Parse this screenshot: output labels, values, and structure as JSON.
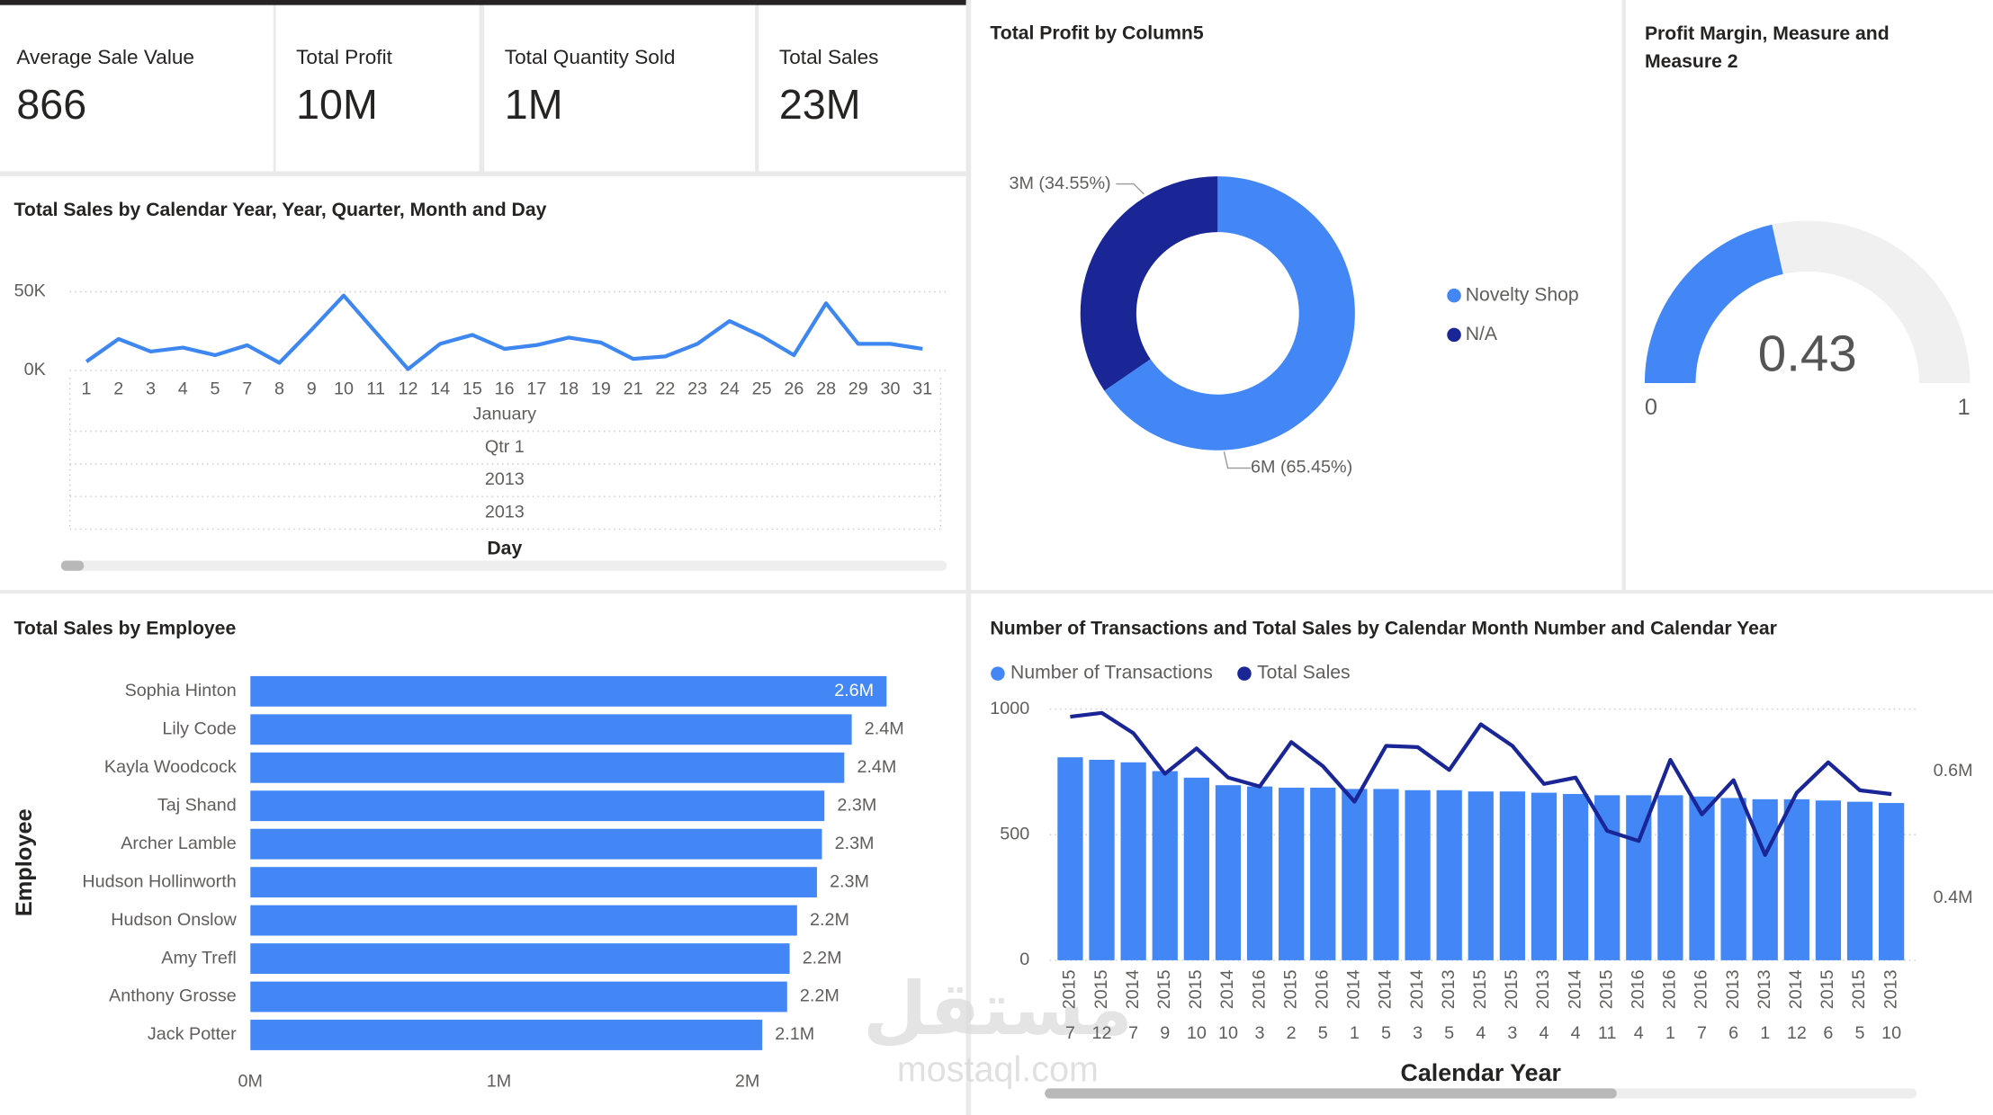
{
  "cards": [
    {
      "label": "Average Sale Value",
      "value": "866"
    },
    {
      "label": "Total Profit",
      "value": "10M"
    },
    {
      "label": "Total Quantity Sold",
      "value": "1M"
    },
    {
      "label": "Total Sales",
      "value": "23M"
    }
  ],
  "chart_data": [
    {
      "type": "line",
      "title": "Total Sales by Calendar Year, Year, Quarter, Month and Day",
      "categories": [
        "1",
        "2",
        "3",
        "4",
        "5",
        "7",
        "8",
        "9",
        "10",
        "11",
        "12",
        "14",
        "15",
        "16",
        "17",
        "18",
        "19",
        "21",
        "22",
        "23",
        "24",
        "25",
        "26",
        "28",
        "29",
        "30",
        "31"
      ],
      "values": [
        5600,
        20000,
        12000,
        14500,
        9700,
        16000,
        4800,
        25800,
        47600,
        24200,
        800,
        16900,
        22600,
        13700,
        16100,
        20900,
        17700,
        7300,
        8900,
        16900,
        31400,
        21800,
        9700,
        42700,
        16900,
        16900,
        13700
      ],
      "color": "#3e86f0",
      "ylim": [
        0,
        56000
      ],
      "yticks": [
        {
          "value": 0,
          "label": "0K"
        },
        {
          "value": 50000,
          "label": "50K"
        }
      ],
      "x_levels": [
        "January",
        "Qtr 1",
        "2013",
        "2013"
      ],
      "xlabel": "Day",
      "grid": true
    },
    {
      "type": "pie",
      "title": "Total Profit by Column5",
      "categories": [
        "Novelty Shop",
        "N/A"
      ],
      "values": [
        65.45,
        34.55
      ],
      "value_labels": [
        "6M (65.45%)",
        "3M (34.55%)"
      ],
      "colors": [
        "#4287f5",
        "#1a2596"
      ],
      "legend": "right"
    },
    {
      "type": "gauge",
      "title": "Profit Margin, Measure and Measure 2",
      "value": 0.43,
      "ylim": [
        0,
        1
      ],
      "yticks": [
        0,
        1
      ],
      "color": "#4287f5",
      "track_color": "#f0f0f0"
    },
    {
      "type": "hbar",
      "title": "Total Sales by Employee",
      "ylabel": "Employee",
      "categories": [
        "Sophia Hinton",
        "Lily Code",
        "Kayla Woodcock",
        "Taj Shand",
        "Archer Lamble",
        "Hudson Hollinworth",
        "Hudson Onslow",
        "Amy Trefl",
        "Anthony Grosse",
        "Jack Potter"
      ],
      "values": [
        2560000,
        2420000,
        2390000,
        2310000,
        2300000,
        2280000,
        2200000,
        2170000,
        2160000,
        2060000
      ],
      "value_labels": [
        "2.6M",
        "2.4M",
        "2.4M",
        "2.3M",
        "2.3M",
        "2.3M",
        "2.2M",
        "2.2M",
        "2.2M",
        "2.1M"
      ],
      "color": "#4287f5",
      "xlim": [
        0,
        2800000
      ],
      "xticks": [
        {
          "value": 0,
          "label": "0M"
        },
        {
          "value": 1000000,
          "label": "1M"
        },
        {
          "value": 2000000,
          "label": "2M"
        }
      ]
    },
    {
      "type": "combo",
      "title": "Number of Transactions and Total Sales by Calendar Month Number and Calendar Year",
      "categories": [
        "7",
        "12",
        "7",
        "9",
        "10",
        "10",
        "3",
        "2",
        "5",
        "1",
        "5",
        "3",
        "5",
        "4",
        "3",
        "4",
        "4",
        "11",
        "4",
        "1",
        "7",
        "6",
        "1",
        "12",
        "6",
        "5",
        "10"
      ],
      "years": [
        "2015",
        "2015",
        "2014",
        "2015",
        "2015",
        "2014",
        "2016",
        "2015",
        "2016",
        "2014",
        "2014",
        "2014",
        "2013",
        "2015",
        "2015",
        "2013",
        "2014",
        "2015",
        "2016",
        "2016",
        "2016",
        "2013",
        "2013",
        "2014",
        "2015",
        "2015",
        "2013"
      ],
      "series": [
        {
          "name": "Number of Transactions",
          "color": "#4287f5",
          "values": [
            808,
            798,
            788,
            753,
            727,
            697,
            692,
            687,
            687,
            682,
            682,
            677,
            677,
            672,
            672,
            667,
            662,
            657,
            657,
            657,
            652,
            646,
            641,
            641,
            636,
            631,
            626
          ]
        },
        {
          "name": "Total Sales",
          "color": "#1a2596",
          "axis": "y2",
          "values": [
            686000,
            692000,
            660000,
            596000,
            636000,
            590000,
            576000,
            646000,
            608000,
            552000,
            640000,
            638000,
            602000,
            674000,
            640000,
            580000,
            590000,
            506000,
            490000,
            618000,
            532000,
            586000,
            468000,
            566000,
            614000,
            570000,
            564000
          ]
        }
      ],
      "ylim": [
        0,
        1000
      ],
      "yticks": [
        0,
        500,
        1000
      ],
      "y2lim": [
        302000,
        698000
      ],
      "y2ticks": [
        {
          "value": 400000,
          "label": "0.4M"
        },
        {
          "value": 600000,
          "label": "0.6M"
        }
      ],
      "xlabel": "Calendar Year",
      "legend": "top-left",
      "grid": true
    }
  ],
  "watermark": {
    "arabic": "مستقل",
    "latin": "mostaql.com"
  }
}
